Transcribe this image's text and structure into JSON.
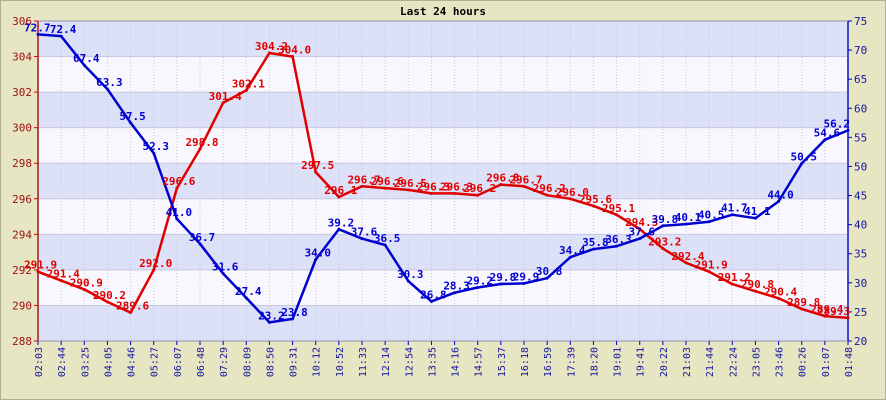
{
  "chart_data": {
    "type": "line",
    "title": "Last 24 hours",
    "xlabel": "",
    "ylabel_left": "",
    "ylabel_right": "",
    "grid": true,
    "x": [
      "02:03",
      "02:44",
      "03:25",
      "04:05",
      "04:46",
      "05:27",
      "06:07",
      "06:48",
      "07:29",
      "08:09",
      "08:50",
      "09:31",
      "10:12",
      "10:52",
      "11:33",
      "12:14",
      "12:54",
      "13:35",
      "14:16",
      "14:57",
      "15:37",
      "16:18",
      "16:59",
      "17:39",
      "18:20",
      "19:01",
      "19:41",
      "20:22",
      "21:03",
      "21:44",
      "22:24",
      "23:05",
      "23:46",
      "00:26",
      "01:07",
      "01:48"
    ],
    "y_left": {
      "min": 288,
      "max": 306,
      "ticks": [
        288,
        290,
        292,
        294,
        296,
        298,
        300,
        302,
        304,
        306
      ]
    },
    "y_right": {
      "min": 20,
      "max": 75,
      "ticks": [
        20,
        25,
        30,
        35,
        40,
        45,
        50,
        55,
        60,
        65,
        70,
        75
      ]
    },
    "series": [
      {
        "axis": "left",
        "color": "#E00000",
        "values": [
          291.9,
          291.4,
          290.9,
          290.2,
          289.6,
          292.0,
          296.6,
          298.8,
          301.4,
          302.1,
          304.2,
          304.0,
          297.5,
          296.1,
          296.7,
          296.6,
          296.5,
          296.3,
          296.3,
          296.2,
          296.8,
          296.7,
          296.2,
          296.0,
          295.6,
          295.1,
          294.3,
          293.2,
          292.4,
          291.9,
          291.2,
          290.8,
          290.4,
          289.8,
          289.4,
          289.3
        ],
        "labels": [
          "291.9",
          "291.4",
          "290.9",
          "290.2",
          "289.6",
          "292.0",
          "296.6",
          "298.8",
          "301.4",
          "302.1",
          "304.2",
          "304.0",
          "297.5",
          "296.1",
          "296.7",
          "296.6",
          "296.5",
          "296.3",
          "296.3",
          "296.2",
          "296.8",
          "296.7",
          "296.2",
          "296.0",
          "295.6",
          "295.1",
          "294.3",
          "293.2",
          "292.4",
          "291.9",
          "291.2",
          "290.8",
          "290.4",
          "289.8",
          "289.4",
          "289.3"
        ]
      },
      {
        "axis": "right",
        "color": "#0000D0",
        "values": [
          72.7,
          72.4,
          67.4,
          63.3,
          57.5,
          52.3,
          41.0,
          36.7,
          31.6,
          27.4,
          23.2,
          23.8,
          34.0,
          39.2,
          37.6,
          36.5,
          30.3,
          26.8,
          28.3,
          29.2,
          29.8,
          29.9,
          30.8,
          34.4,
          35.8,
          36.3,
          37.6,
          39.8,
          40.1,
          40.5,
          41.7,
          41.1,
          44.0,
          50.5,
          54.6,
          56.2
        ],
        "labels": [
          "72.7",
          "72.4",
          "67.4",
          "63.3",
          "57.5",
          "52.3",
          "41.0",
          "36.7",
          "31.6",
          "27.4",
          "23.2",
          "23.8",
          "34.0",
          "39.2",
          "37.6",
          "36.5",
          "30.3",
          "26.8",
          "28.3",
          "29.2",
          "29.8",
          "29.9",
          "30.8",
          "34.4",
          "35.8",
          "36.3",
          "37.6",
          "39.8",
          "40.1",
          "40.5",
          "41.7",
          "41.1",
          "44.0",
          "50.5",
          "54.6",
          "56.2"
        ]
      }
    ]
  }
}
